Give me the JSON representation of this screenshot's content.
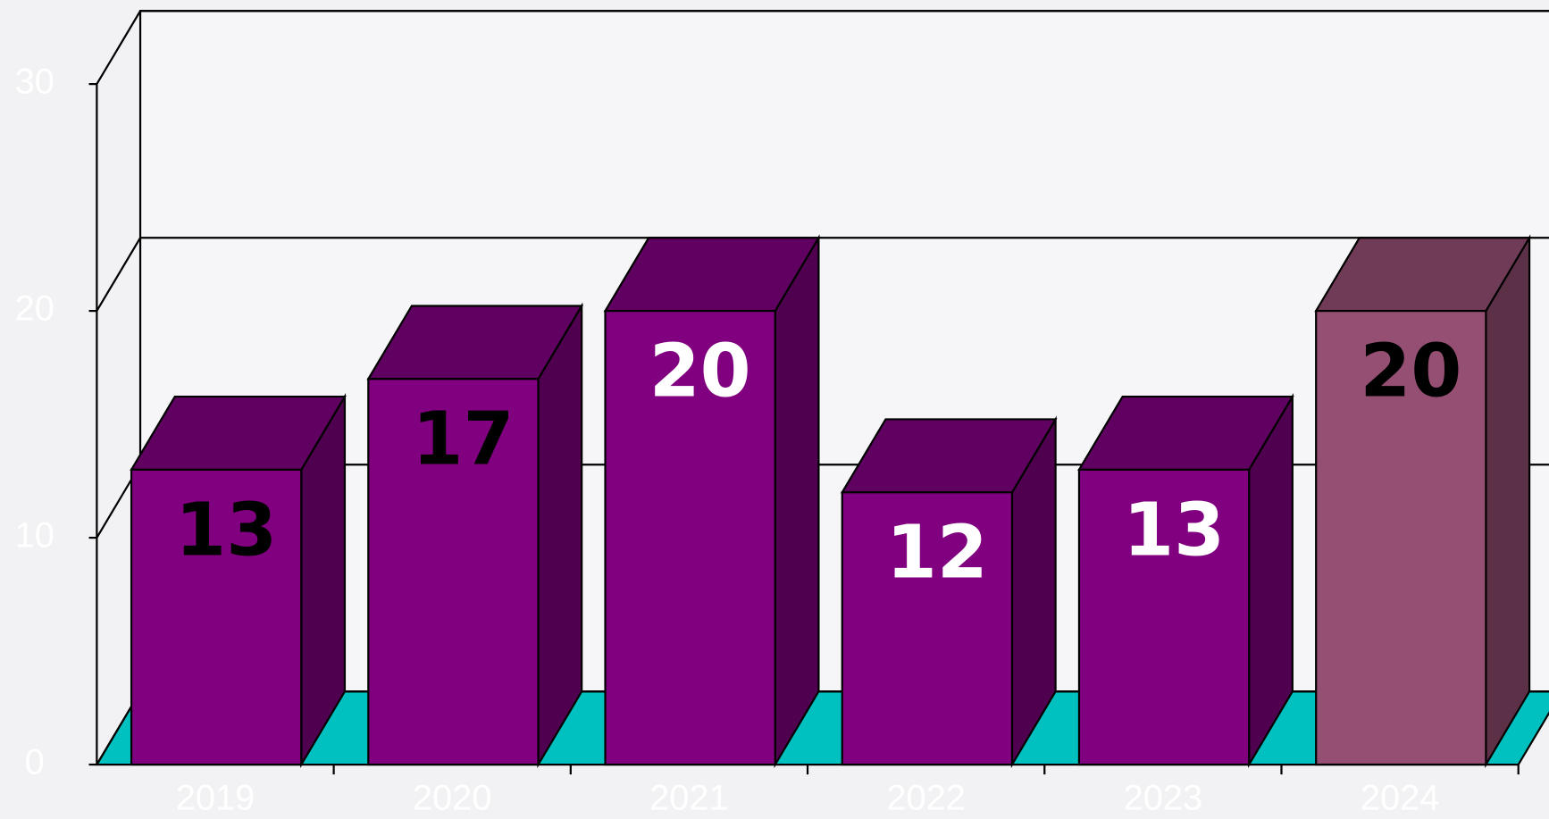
{
  "chart_data": {
    "type": "bar3d",
    "categories": [
      "2019",
      "2020",
      "2021",
      "2022",
      "2023",
      "2024"
    ],
    "values": [
      13,
      17,
      20,
      12,
      13,
      20
    ],
    "colors": [
      "#800080",
      "#800080",
      "#800080",
      "#800080",
      "#800080",
      "#954f72"
    ],
    "value_label_colors": [
      "#000000",
      "#000000",
      "#ffffff",
      "#ffffff",
      "#ffffff",
      "#000000"
    ],
    "floor_color": "#00c0c0",
    "ylim": [
      0,
      30
    ],
    "yticks": [
      0,
      10,
      20,
      30
    ],
    "grid": true
  }
}
